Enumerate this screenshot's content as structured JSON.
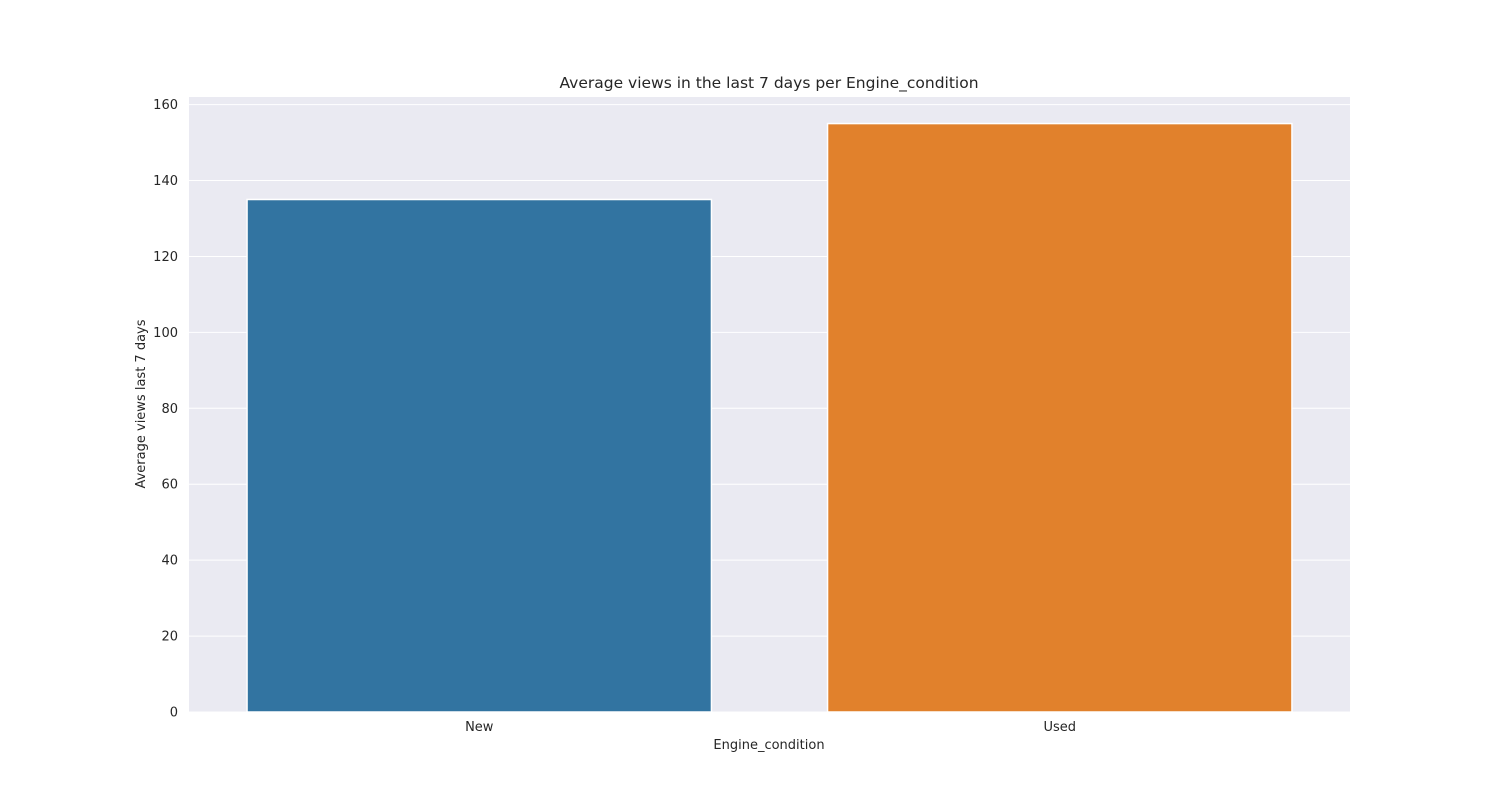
{
  "chart_data": {
    "type": "bar",
    "title": "Average views in the last 7 days per Engine_condition",
    "xlabel": "Engine_condition",
    "ylabel": "Average views last 7 days",
    "categories": [
      "New",
      "Used"
    ],
    "values": [
      135,
      155
    ],
    "colors": [
      "#3274a1",
      "#e1812c"
    ],
    "ylim": [
      0,
      162
    ],
    "yticks": [
      0,
      20,
      40,
      60,
      80,
      100,
      120,
      140,
      160
    ],
    "grid": true,
    "background": "#eaeaf2",
    "legend": "none"
  }
}
